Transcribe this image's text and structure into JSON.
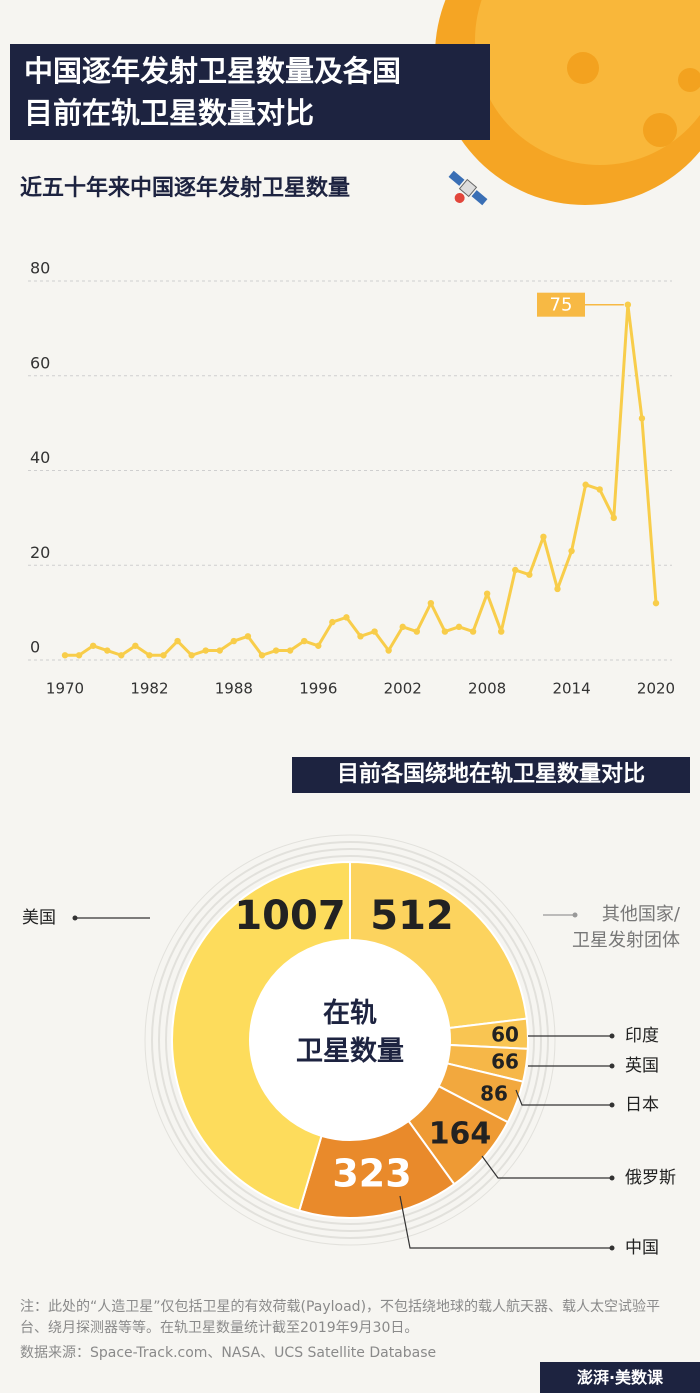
{
  "header": {
    "title": "中国逐年发射卫星数量及各国\n目前在轨卫星数量对比"
  },
  "chart_data": [
    {
      "type": "line",
      "title": "近五十年来中国逐年发射卫星数量",
      "categories": [
        "1970",
        null,
        null,
        null,
        null,
        null,
        "1982",
        null,
        null,
        null,
        null,
        null,
        "1988",
        null,
        null,
        null,
        null,
        null,
        "1996",
        null,
        null,
        null,
        null,
        null,
        "2002",
        null,
        null,
        null,
        null,
        null,
        "2008",
        null,
        null,
        null,
        null,
        null,
        "2014",
        null,
        null,
        null,
        null,
        null,
        "2020"
      ],
      "values": [
        1,
        1,
        3,
        2,
        1,
        3,
        1,
        1,
        4,
        1,
        2,
        2,
        4,
        5,
        1,
        2,
        2,
        4,
        3,
        8,
        9,
        5,
        6,
        2,
        7,
        6,
        12,
        6,
        7,
        6,
        14,
        6,
        19,
        18,
        26,
        15,
        23,
        37,
        36,
        30,
        75,
        51,
        12
      ],
      "color": "#f8cd4a",
      "ylim": [
        0,
        80
      ],
      "yticks": [
        0,
        20,
        40,
        60,
        80
      ],
      "grid": true
    },
    {
      "type": "pie",
      "title": "目前各国绕地在轨卫星数量对比",
      "center_label": "在轨\n卫星数量",
      "categories": [
        "其他国家/\n卫星发射团体",
        "印度",
        "英国",
        "日本",
        "俄罗斯",
        "中国",
        "美国"
      ],
      "values": [
        512,
        60,
        66,
        86,
        164,
        323,
        1007
      ],
      "colors": [
        "#fcd35e",
        "#f9c552",
        "#f6b748",
        "#f2a83e",
        "#ee9a34",
        "#e98a2b",
        "#fddc5c"
      ]
    }
  ],
  "note": "注：此处的“人造卫星”仅包括卫星的有效荷载(Payload)，不包括绕地球的载人航天器、载人太空试验平台、绕月探测器等等。在轨卫星数量统计截至2019年9月30日。",
  "source": "数据来源：Space-Track.com、NASA、UCS Satellite Database",
  "logo": "澎湃·美数课"
}
